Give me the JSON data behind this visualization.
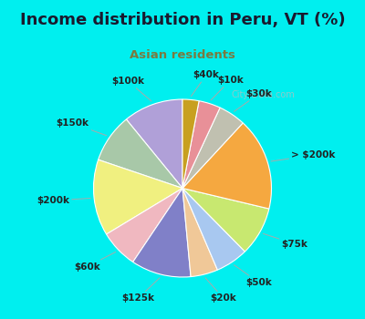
{
  "title": "Income distribution in Peru, VT (%)",
  "subtitle": "Asian residents",
  "bg_cyan": "#00EFEF",
  "bg_chart": "#e0f0ea",
  "title_color": "#1a1a2e",
  "subtitle_color": "#7a7a40",
  "labels": [
    "$100k",
    "$150k",
    "$200k",
    "$60k",
    "$125k",
    "$20k",
    "$50k",
    "$75k",
    "> $200k",
    "$30k",
    "$10k",
    "$40k"
  ],
  "values": [
    11,
    9,
    14,
    7,
    11,
    5,
    6,
    9,
    17,
    5,
    4,
    3
  ],
  "colors": [
    "#b0a0d8",
    "#a8c8a8",
    "#f0f080",
    "#f0b8c0",
    "#8080c8",
    "#f0c898",
    "#a8c8f0",
    "#c8e870",
    "#f5a840",
    "#c0c0b0",
    "#e89098",
    "#c8a020"
  ],
  "startangle": 90,
  "label_fontsize": 7.5,
  "title_fontsize": 13,
  "subtitle_fontsize": 9.5,
  "watermark": "City-Data.com"
}
